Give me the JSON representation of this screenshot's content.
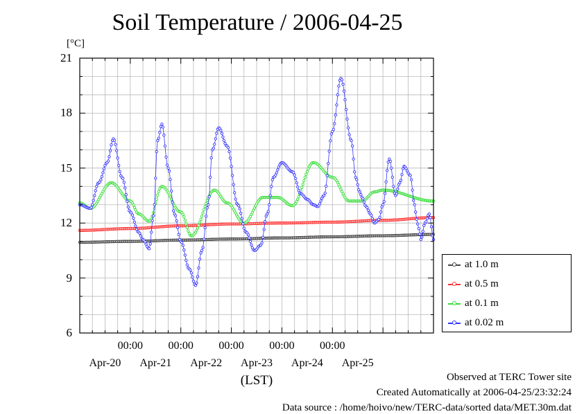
{
  "chart_data": {
    "type": "line",
    "title": "Soil Temperature / 2006-04-25",
    "ylabel": "[°C]",
    "xlabel": "(LST)",
    "ylim": [
      6,
      21
    ],
    "yticks": [
      6,
      9,
      12,
      15,
      18,
      21
    ],
    "xlim": [
      "2006-04-19 00:00",
      "2006-04-26 00:00"
    ],
    "xticks_time": [
      {
        "at": "2006-04-20 00:00",
        "label": "00:00"
      },
      {
        "at": "2006-04-21 00:00",
        "label": "00:00"
      },
      {
        "at": "2006-04-22 00:00",
        "label": "00:00"
      },
      {
        "at": "2006-04-23 00:00",
        "label": "00:00"
      },
      {
        "at": "2006-04-24 00:00",
        "label": "00:00"
      }
    ],
    "xticks_date": [
      {
        "at": "2006-04-19 12:00",
        "label": "Apr-20"
      },
      {
        "at": "2006-04-20 12:00",
        "label": "Apr-21"
      },
      {
        "at": "2006-04-21 12:00",
        "label": "Apr-22"
      },
      {
        "at": "2006-04-22 12:00",
        "label": "Apr-23"
      },
      {
        "at": "2006-04-23 12:00",
        "label": "Apr-24"
      },
      {
        "at": "2006-04-24 12:00",
        "label": "Apr-25"
      }
    ],
    "grid": true,
    "legend_position": "right",
    "series": [
      {
        "name": "at 1.0 m",
        "color": "#444444",
        "x": [
          "2006-04-19 00:00",
          "2006-04-20 00:00",
          "2006-04-21 00:00",
          "2006-04-22 00:00",
          "2006-04-23 00:00",
          "2006-04-24 00:00",
          "2006-04-25 00:00",
          "2006-04-26 00:00"
        ],
        "y": [
          10.95,
          11.0,
          11.07,
          11.13,
          11.19,
          11.25,
          11.31,
          11.38
        ]
      },
      {
        "name": "at 0.5 m",
        "color": "#ff3333",
        "x": [
          "2006-04-19 00:00",
          "2006-04-20 00:00",
          "2006-04-21 00:00",
          "2006-04-22 00:00",
          "2006-04-23 00:00",
          "2006-04-24 00:00",
          "2006-04-25 00:00",
          "2006-04-26 00:00"
        ],
        "y": [
          11.6,
          11.7,
          11.85,
          11.95,
          12.0,
          12.05,
          12.15,
          12.3
        ]
      },
      {
        "name": "at 0.1 m",
        "color": "#33dd33",
        "x": [
          "2006-04-19 00:00",
          "2006-04-19 05:00",
          "2006-04-19 15:00",
          "2006-04-20 00:00",
          "2006-04-20 04:00",
          "2006-04-20 09:00",
          "2006-04-20 15:00",
          "2006-04-21 00:00",
          "2006-04-21 05:00",
          "2006-04-21 16:00",
          "2006-04-21 22:00",
          "2006-04-22 06:00",
          "2006-04-22 15:00",
          "2006-04-22 22:00",
          "2006-04-23 05:00",
          "2006-04-23 15:00",
          "2006-04-24 00:00",
          "2006-04-24 08:00",
          "2006-04-24 14:00",
          "2006-04-24 20:00",
          "2006-04-25 00:00",
          "2006-04-26 00:00"
        ],
        "y": [
          13.1,
          12.8,
          14.2,
          13.2,
          12.5,
          12.1,
          14.0,
          12.6,
          11.3,
          13.8,
          13.1,
          12.0,
          13.4,
          13.4,
          12.95,
          15.3,
          14.5,
          13.2,
          13.2,
          13.7,
          13.8,
          13.2
        ]
      },
      {
        "name": "at 0.02 m",
        "color": "#3333ff",
        "x": [
          "2006-04-19 00:00",
          "2006-04-19 05:00",
          "2006-04-19 09:00",
          "2006-04-19 13:00",
          "2006-04-19 16:00",
          "2006-04-19 20:00",
          "2006-04-20 00:00",
          "2006-04-20 04:00",
          "2006-04-20 06:00",
          "2006-04-20 09:00",
          "2006-04-20 11:00",
          "2006-04-20 13:00",
          "2006-04-20 15:00",
          "2006-04-20 18:00",
          "2006-04-20 21:00",
          "2006-04-21 00:00",
          "2006-04-21 04:00",
          "2006-04-21 07:00",
          "2006-04-21 10:00",
          "2006-04-21 13:00",
          "2006-04-21 15:00",
          "2006-04-21 18:00",
          "2006-04-21 22:00",
          "2006-04-22 03:00",
          "2006-04-22 07:00",
          "2006-04-22 11:00",
          "2006-04-22 14:00",
          "2006-04-22 17:00",
          "2006-04-22 20:00",
          "2006-04-23 00:00",
          "2006-04-23 05:00",
          "2006-04-23 09:00",
          "2006-04-23 12:00",
          "2006-04-23 15:00",
          "2006-04-23 17:00",
          "2006-04-23 20:00",
          "2006-04-24 00:00",
          "2006-04-24 04:00",
          "2006-04-24 09:00",
          "2006-04-24 11:00",
          "2006-04-24 13:00",
          "2006-04-24 14:00",
          "2006-04-24 16:00",
          "2006-04-24 18:00",
          "2006-04-24 20:00",
          "2006-04-24 22:00",
          "2006-04-25 00:00",
          "2006-04-25 03:00",
          "2006-04-25 06:00",
          "2006-04-25 08:00",
          "2006-04-25 10:00",
          "2006-04-25 13:00",
          "2006-04-25 15:00",
          "2006-04-25 16:00",
          "2006-04-25 17:00",
          "2006-04-25 18:00",
          "2006-04-25 20:00",
          "2006-04-25 22:00",
          "2006-04-26 00:00"
        ],
        "y": [
          13.0,
          12.8,
          14.2,
          15.3,
          16.6,
          14.5,
          12.6,
          11.5,
          11.1,
          10.6,
          12.4,
          16.5,
          17.4,
          15.0,
          12.5,
          11.0,
          9.5,
          8.6,
          10.5,
          13.0,
          16.0,
          17.2,
          16.2,
          13.0,
          11.5,
          10.5,
          10.8,
          12.5,
          14.5,
          15.3,
          14.8,
          13.6,
          13.3,
          13.0,
          12.9,
          13.5,
          17.0,
          19.9,
          16.5,
          14.5,
          13.7,
          13.4,
          12.9,
          12.5,
          12.0,
          12.2,
          13.0,
          15.5,
          13.5,
          14.2,
          15.1,
          14.6,
          13.0,
          12.2,
          11.7,
          11.1,
          12.0,
          12.5,
          11.1
        ]
      }
    ]
  },
  "footer": {
    "line1": "Observed at TERC Tower site",
    "line2": "Created Automatically at 2006-04-25/23:32:24",
    "line3": "Data source : /home/hoivo/new/TERC-data/sorted  data/MET.30m.dat"
  }
}
